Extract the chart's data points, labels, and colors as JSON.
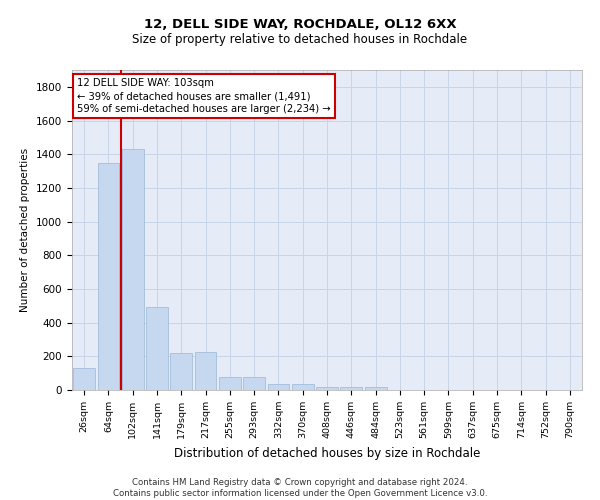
{
  "title1": "12, DELL SIDE WAY, ROCHDALE, OL12 6XX",
  "title2": "Size of property relative to detached houses in Rochdale",
  "xlabel": "Distribution of detached houses by size in Rochdale",
  "ylabel": "Number of detached properties",
  "categories": [
    "26sqm",
    "64sqm",
    "102sqm",
    "141sqm",
    "179sqm",
    "217sqm",
    "255sqm",
    "293sqm",
    "332sqm",
    "370sqm",
    "408sqm",
    "446sqm",
    "484sqm",
    "523sqm",
    "561sqm",
    "599sqm",
    "637sqm",
    "675sqm",
    "714sqm",
    "752sqm",
    "790sqm"
  ],
  "values": [
    130,
    1350,
    1430,
    490,
    220,
    225,
    80,
    75,
    38,
    38,
    20,
    20,
    15,
    0,
    0,
    0,
    0,
    0,
    0,
    0,
    0
  ],
  "bar_color": "#c5d8ef",
  "bar_edge_color": "#9ab6d8",
  "grid_color": "#c8d4e8",
  "background_color": "#e6ecf7",
  "red_line_index": 1.5,
  "annotation_text": "12 DELL SIDE WAY: 103sqm\n← 39% of detached houses are smaller (1,491)\n59% of semi-detached houses are larger (2,234) →",
  "annotation_box_facecolor": "#ffffff",
  "red_line_color": "#cc0000",
  "footer_text": "Contains HM Land Registry data © Crown copyright and database right 2024.\nContains public sector information licensed under the Open Government Licence v3.0.",
  "ylim": [
    0,
    1900
  ],
  "yticks": [
    0,
    200,
    400,
    600,
    800,
    1000,
    1200,
    1400,
    1600,
    1800
  ]
}
